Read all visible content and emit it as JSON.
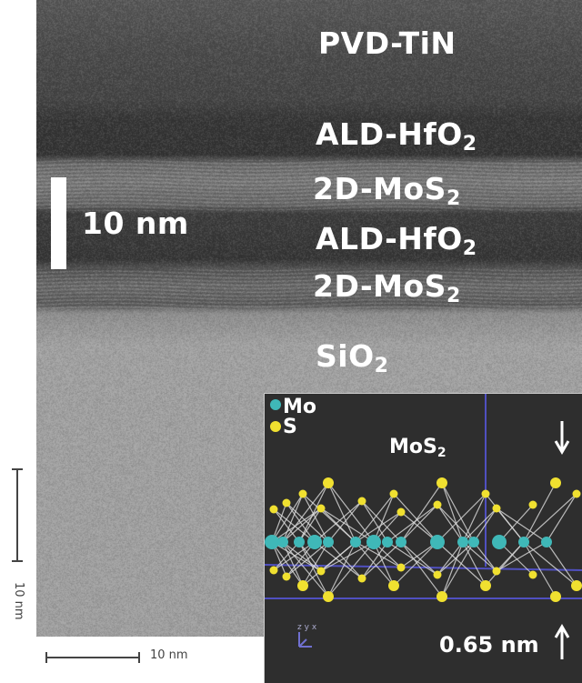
{
  "layers": {
    "tin": "PVD-TiN",
    "hfo2_top_main": "ALD-HfO",
    "hfo2_top_sub": "2",
    "mos2_top_main": "2D-MoS",
    "mos2_top_sub": "2",
    "hfo2_mid_main": "ALD-HfO",
    "hfo2_mid_sub": "2",
    "mos2_bot_main": "2D-MoS",
    "mos2_bot_sub": "2",
    "sio2_main": "SiO",
    "sio2_sub": "2"
  },
  "scale_bar": {
    "label": "10 nm"
  },
  "original_scales": {
    "vertical": "10 nm",
    "horizontal": "10 nm"
  },
  "inset": {
    "legend": [
      {
        "label": "Mo",
        "color": "#3fb8b8"
      },
      {
        "label": "S",
        "color": "#f0e030"
      }
    ],
    "title_main": "MoS",
    "title_sub": "2",
    "thickness": "0.65 nm",
    "axes": [
      "z",
      "y",
      "x"
    ],
    "background": "#2e2e2e",
    "guide_color": "#5050c0"
  }
}
